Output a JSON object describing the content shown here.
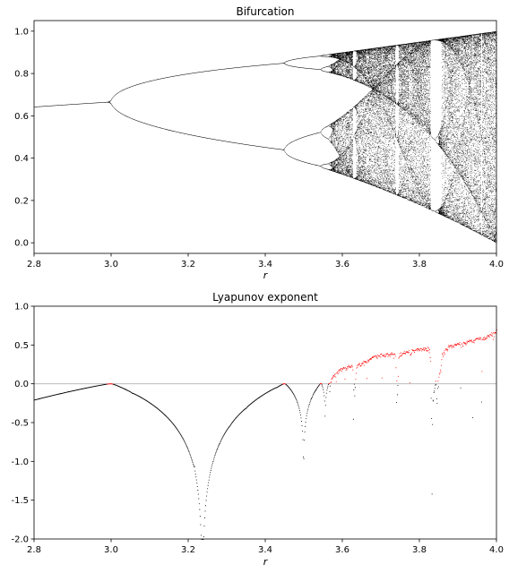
{
  "chart_data": [
    {
      "type": "scatter",
      "title": "Bifurcation",
      "xlabel": "r",
      "ylabel": "",
      "xlim": [
        2.8,
        4.0
      ],
      "ylim": [
        -0.05,
        1.05
      ],
      "xticks": [
        "2.8",
        "3.0",
        "3.2",
        "3.4",
        "3.6",
        "3.8",
        "4.0"
      ],
      "yticks": [
        "0.0",
        "0.2",
        "0.4",
        "0.6",
        "0.8",
        "1.0"
      ],
      "grid": false,
      "series": [
        {
          "color": "#000000",
          "marker": "dot",
          "generator": "logistic map x(n+1) = r*x(n)*(1-x(n)), r from 2.8 to 4.0, attractor values after transient",
          "x": [
            2.8,
            2.9,
            3.0,
            3.1,
            3.2,
            3.3,
            3.4,
            3.449,
            3.5,
            3.544,
            3.569,
            3.6,
            3.7,
            3.8,
            3.83,
            3.9,
            4.0
          ],
          "y_min": [
            0.643,
            0.655,
            0.667,
            0.558,
            0.513,
            0.48,
            0.452,
            0.44,
            0.383,
            0.365,
            0.34,
            0.32,
            0.25,
            0.19,
            0.157,
            0.09,
            0.0
          ],
          "y_max": [
            0.643,
            0.655,
            0.667,
            0.765,
            0.799,
            0.824,
            0.842,
            0.849,
            0.875,
            0.885,
            0.892,
            0.9,
            0.925,
            0.95,
            0.957,
            0.975,
            1.0
          ]
        }
      ]
    },
    {
      "type": "scatter",
      "title": "Lyapunov exponent",
      "xlabel": "r",
      "ylabel": "",
      "xlim": [
        2.8,
        4.0
      ],
      "ylim": [
        -2.0,
        1.0
      ],
      "xticks": [
        "2.8",
        "3.0",
        "3.2",
        "3.4",
        "3.6",
        "3.8",
        "4.0"
      ],
      "yticks": [
        "1.0",
        "0.5",
        "0.0",
        "-0.5",
        "-1.0",
        "-1.5",
        "-2.0"
      ],
      "grid": false,
      "reference_line": {
        "y": 0.0,
        "color": "#b0b0b0"
      },
      "series": [
        {
          "color": "#000000",
          "marker": "dot",
          "condition": "lyapunov < 0",
          "x": [
            2.8,
            2.9,
            3.0,
            3.1,
            3.2,
            3.236,
            3.3,
            3.4,
            3.449,
            3.5,
            3.544,
            3.569
          ],
          "y": [
            -0.22,
            -0.11,
            0.0,
            -0.4,
            -0.92,
            -2.0,
            -0.62,
            -0.22,
            0.0,
            -0.87,
            0.0,
            -0.05
          ]
        },
        {
          "color": "#ff0000",
          "marker": "dot",
          "condition": "lyapunov > 0",
          "x": [
            3.57,
            3.6,
            3.63,
            3.7,
            3.74,
            3.8,
            3.85,
            3.9,
            4.0
          ],
          "y": [
            0.05,
            0.18,
            0.25,
            0.33,
            0.37,
            0.4,
            0.4,
            0.5,
            0.69
          ]
        }
      ],
      "windows": [
        3.627,
        3.702,
        3.739,
        3.774,
        3.832,
        3.906,
        3.96
      ]
    }
  ]
}
